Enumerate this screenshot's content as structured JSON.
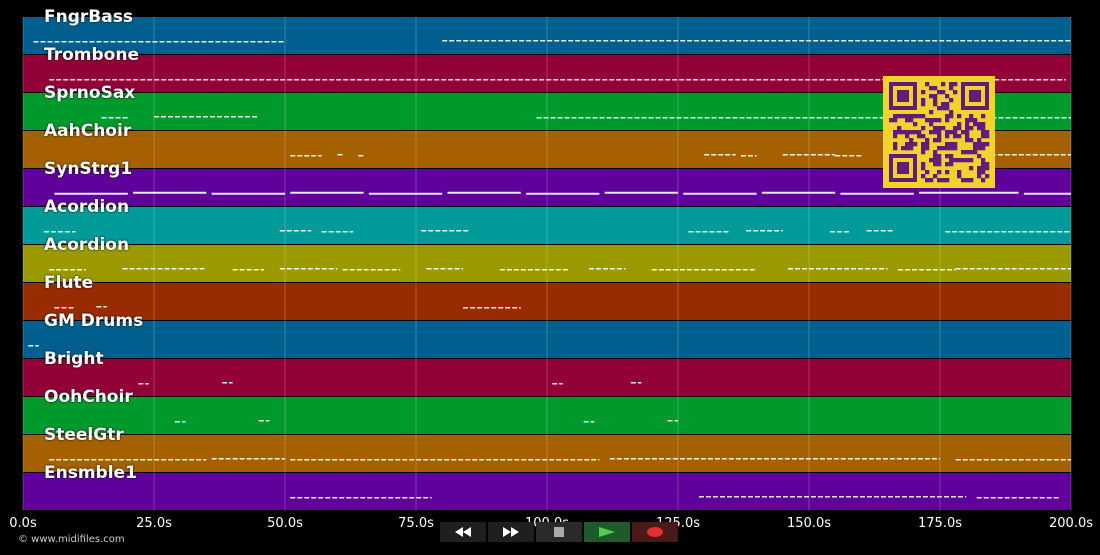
{
  "tracks": [
    {
      "name": "FngrBass",
      "color": "#005f8e"
    },
    {
      "name": "Trombone",
      "color": "#920038"
    },
    {
      "name": "SprnoSax",
      "color": "#009a2c"
    },
    {
      "name": "AahChoir",
      "color": "#a56100"
    },
    {
      "name": "SynStrg1",
      "color": "#5f009a"
    },
    {
      "name": "Acordion",
      "color": "#009b98"
    },
    {
      "name": "Acordion",
      "color": "#9a9a00"
    },
    {
      "name": "Flute",
      "color": "#992b00"
    },
    {
      "name": "GM Drums",
      "color": "#005f8e"
    },
    {
      "name": "Bright",
      "color": "#920038"
    },
    {
      "name": "OohChoir",
      "color": "#009a2c"
    },
    {
      "name": "SteelGtr",
      "color": "#a56100"
    },
    {
      "name": "Ensmble1",
      "color": "#5f009a"
    }
  ],
  "timeline": {
    "ticks": [
      "0.0s",
      "25.0s",
      "50.0s",
      "75.0s",
      "100.0s",
      "125.0s",
      "150.0s",
      "175.0s",
      "200.0s"
    ],
    "max_seconds": 200
  },
  "note_spans": [
    [
      [
        2,
        50
      ],
      [
        80,
        200
      ]
    ],
    [
      [
        5,
        199
      ]
    ],
    [
      [
        15,
        20
      ],
      [
        25,
        45
      ],
      [
        98,
        200
      ]
    ],
    [
      [
        51,
        57
      ],
      [
        60,
        61
      ],
      [
        64,
        65
      ],
      [
        130,
        136
      ],
      [
        137,
        140
      ],
      [
        145,
        155
      ],
      [
        155,
        160
      ],
      [
        170,
        200
      ]
    ],
    [
      [
        6,
        20
      ],
      [
        21,
        35
      ],
      [
        36,
        50
      ],
      [
        51,
        65
      ],
      [
        66,
        80
      ],
      [
        81,
        95
      ],
      [
        96,
        110
      ],
      [
        111,
        125
      ],
      [
        126,
        140
      ],
      [
        141,
        155
      ],
      [
        156,
        170
      ],
      [
        171,
        190
      ],
      [
        191,
        200
      ]
    ],
    [
      [
        4,
        10
      ],
      [
        49,
        55
      ],
      [
        57,
        63
      ],
      [
        76,
        85
      ],
      [
        127,
        135
      ],
      [
        138,
        145
      ],
      [
        154,
        158
      ],
      [
        161,
        166
      ],
      [
        176,
        200
      ]
    ],
    [
      [
        5,
        12
      ],
      [
        19,
        35
      ],
      [
        40,
        46
      ],
      [
        49,
        60
      ],
      [
        61,
        72
      ],
      [
        77,
        84
      ],
      [
        91,
        104
      ],
      [
        108,
        115
      ],
      [
        120,
        140
      ],
      [
        146,
        165
      ],
      [
        167,
        178
      ],
      [
        178,
        200
      ]
    ],
    [
      [
        6,
        10
      ],
      [
        14,
        16
      ],
      [
        84,
        95
      ]
    ],
    [
      [
        1,
        3
      ]
    ],
    [
      [
        22,
        24
      ],
      [
        38,
        40
      ],
      [
        101,
        103
      ],
      [
        116,
        118
      ]
    ],
    [
      [
        29,
        31
      ],
      [
        45,
        47
      ],
      [
        107,
        109
      ],
      [
        123,
        125
      ]
    ],
    [
      [
        5,
        35
      ],
      [
        36,
        50
      ],
      [
        51,
        110
      ],
      [
        112,
        175
      ],
      [
        178,
        200
      ]
    ],
    [
      [
        51,
        78
      ],
      [
        129,
        180
      ],
      [
        182,
        198
      ]
    ]
  ],
  "qr_color": "#f4d22c",
  "credit": "© www.midifiles.com",
  "controls": [
    {
      "name": "rewind-button",
      "icon": "rewind-icon"
    },
    {
      "name": "fast-forward-button",
      "icon": "fast-forward-icon"
    },
    {
      "name": "stop-button",
      "icon": "stop-icon"
    },
    {
      "name": "play-button",
      "icon": "play-icon"
    },
    {
      "name": "record-button",
      "icon": "record-icon"
    }
  ]
}
